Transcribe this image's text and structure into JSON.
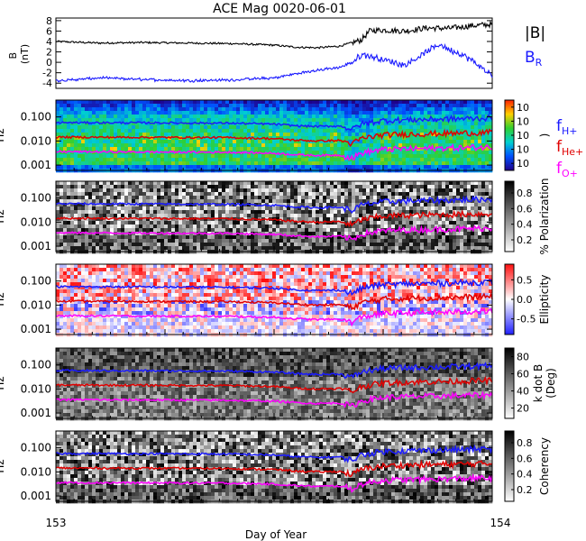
{
  "title": "ACE Mag 0020-06-01",
  "xlabel": "Day of Year",
  "x_ticks": [
    "153",
    "154"
  ],
  "colors": {
    "H": "#1a1aff",
    "He": "#e00000",
    "O": "#ff00ff",
    "B_total": "#000000",
    "B_r": "#1a1aff"
  },
  "chart_data": [
    {
      "type": "line",
      "panel": "magnetic-field",
      "ylabel": "B\n(nT)",
      "ylim": [
        -5,
        8.5
      ],
      "y_ticks": [
        -4,
        -2,
        0,
        2,
        4,
        6,
        8
      ],
      "x_range": [
        153,
        154
      ],
      "legend": {
        "placement": "right",
        "entries": [
          "|B|",
          "B_R"
        ]
      },
      "series": [
        {
          "name": "|B|",
          "label_main": "|B|",
          "label_sub": "",
          "x": [
            153.0,
            153.1,
            153.2,
            153.3,
            153.4,
            153.5,
            153.55,
            153.6,
            153.65,
            153.68,
            153.7,
            153.72,
            153.75,
            153.8,
            153.85,
            153.9,
            153.95,
            154.0
          ],
          "values": [
            4.0,
            3.7,
            3.8,
            3.7,
            3.6,
            3.3,
            2.9,
            2.8,
            3.1,
            3.8,
            4.3,
            6.1,
            6.2,
            6.0,
            6.6,
            6.5,
            7.0,
            7.3
          ]
        },
        {
          "name": "B_R",
          "label_main": "B",
          "label_sub": "R",
          "x": [
            153.0,
            153.05,
            153.1,
            153.2,
            153.3,
            153.4,
            153.5,
            153.55,
            153.6,
            153.65,
            153.68,
            153.7,
            153.72,
            153.75,
            153.8,
            153.85,
            153.88,
            153.9,
            153.93,
            153.95,
            154.0
          ],
          "values": [
            -3.5,
            -3.3,
            -3.0,
            -3.3,
            -3.5,
            -3.4,
            -3.0,
            -2.2,
            -1.5,
            -1.0,
            0.0,
            1.5,
            1.2,
            0.5,
            -0.5,
            2.0,
            3.5,
            2.5,
            1.5,
            0.5,
            -2.5
          ]
        }
      ]
    },
    {
      "type": "heatmap",
      "panel": "power",
      "ylabel": "Hz",
      "y_scale": "log",
      "ylim": [
        0.0006,
        0.5
      ],
      "y_ticks": [
        "0.100",
        "0.010",
        "0.001"
      ],
      "colorbar": {
        "ticks": [
          "10",
          "10",
          "10",
          "10",
          "10"
        ],
        "label": ")",
        "range": "rainbow"
      },
      "gyro_lines": [
        {
          "name": "f_H+",
          "label_main": "f",
          "label_sub": "H+",
          "x": [
            153.0,
            153.2,
            153.4,
            153.5,
            153.55,
            153.6,
            153.65,
            153.68,
            153.7,
            153.75,
            153.8,
            153.9,
            154.0
          ],
          "values": [
            0.058,
            0.057,
            0.055,
            0.05,
            0.043,
            0.04,
            0.042,
            0.03,
            0.05,
            0.07,
            0.075,
            0.082,
            0.09
          ]
        },
        {
          "name": "f_He+",
          "label_main": "f",
          "label_sub": "He+",
          "x": [
            153.0,
            153.2,
            153.4,
            153.5,
            153.55,
            153.6,
            153.65,
            153.68,
            153.7,
            153.75,
            153.8,
            153.9,
            154.0
          ],
          "values": [
            0.0145,
            0.0142,
            0.0138,
            0.0125,
            0.0108,
            0.01,
            0.0105,
            0.0075,
            0.0125,
            0.0175,
            0.019,
            0.0205,
            0.0225
          ]
        },
        {
          "name": "f_O+",
          "label_main": "f",
          "label_sub": "O+",
          "x": [
            153.0,
            153.2,
            153.4,
            153.5,
            153.55,
            153.6,
            153.65,
            153.68,
            153.7,
            153.75,
            153.8,
            153.9,
            154.0
          ],
          "values": [
            0.0036,
            0.0035,
            0.0034,
            0.0031,
            0.0027,
            0.0025,
            0.0026,
            0.0019,
            0.0031,
            0.0044,
            0.0047,
            0.0051,
            0.0056
          ]
        }
      ]
    },
    {
      "type": "heatmap",
      "panel": "polarization",
      "ylabel": "Hz",
      "y_scale": "log",
      "y_ticks": [
        "0.100",
        "0.010",
        "0.001"
      ],
      "colorbar": {
        "ticks": [
          "0.8",
          "0.6",
          "0.4",
          "0.2"
        ],
        "label": "% Polarization",
        "range": "gray"
      }
    },
    {
      "type": "heatmap",
      "panel": "ellipticity",
      "ylabel": "Hz",
      "y_scale": "log",
      "y_ticks": [
        "0.100",
        "0.010",
        "0.001"
      ],
      "colorbar": {
        "ticks": [
          "0.5",
          "0.0",
          "-0.5"
        ],
        "label": "Ellipticity",
        "range": "blue-white-red"
      }
    },
    {
      "type": "heatmap",
      "panel": "k-dot-b",
      "ylabel": "Hz",
      "y_scale": "log",
      "y_ticks": [
        "0.100",
        "0.010",
        "0.001"
      ],
      "colorbar": {
        "ticks": [
          "80",
          "60",
          "40",
          "20"
        ],
        "label": "k dot B",
        "label2": "(Deg)",
        "range": "gray"
      }
    },
    {
      "type": "heatmap",
      "panel": "coherency",
      "ylabel": "Hz",
      "y_scale": "log",
      "y_ticks": [
        "0.100",
        "0.010",
        "0.001"
      ],
      "colorbar": {
        "ticks": [
          "0.8",
          "0.6",
          "0.4",
          "0.2"
        ],
        "label": "Coherency",
        "range": "gray"
      }
    }
  ]
}
